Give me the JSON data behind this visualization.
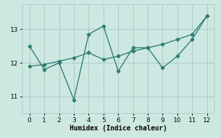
{
  "xlabel": "Humidex (Indice chaleur)",
  "background_color": "#cce8e0",
  "line_color": "#2e7d72",
  "grid_color": "#aaccc4",
  "x_vals": [
    0,
    1,
    2,
    3,
    4,
    5,
    6,
    7,
    8,
    9,
    10,
    11,
    12
  ],
  "y_volatile": [
    12.5,
    11.8,
    12.0,
    10.9,
    12.85,
    13.1,
    11.75,
    12.45,
    12.45,
    11.85,
    12.2,
    12.7,
    13.4
  ],
  "y_smooth": [
    11.9,
    11.95,
    12.05,
    12.15,
    12.3,
    12.1,
    12.2,
    12.35,
    12.45,
    12.55,
    12.7,
    12.85,
    13.4
  ],
  "xlim": [
    -0.5,
    12.5
  ],
  "ylim": [
    10.5,
    13.75
  ],
  "yticks": [
    11,
    12,
    13
  ],
  "xticks": [
    0,
    1,
    2,
    3,
    4,
    5,
    6,
    7,
    8,
    9,
    10,
    11,
    12
  ],
  "marker_size": 2.5,
  "linewidth": 1.0,
  "xlabel_fontsize": 7,
  "tick_fontsize": 6.5
}
